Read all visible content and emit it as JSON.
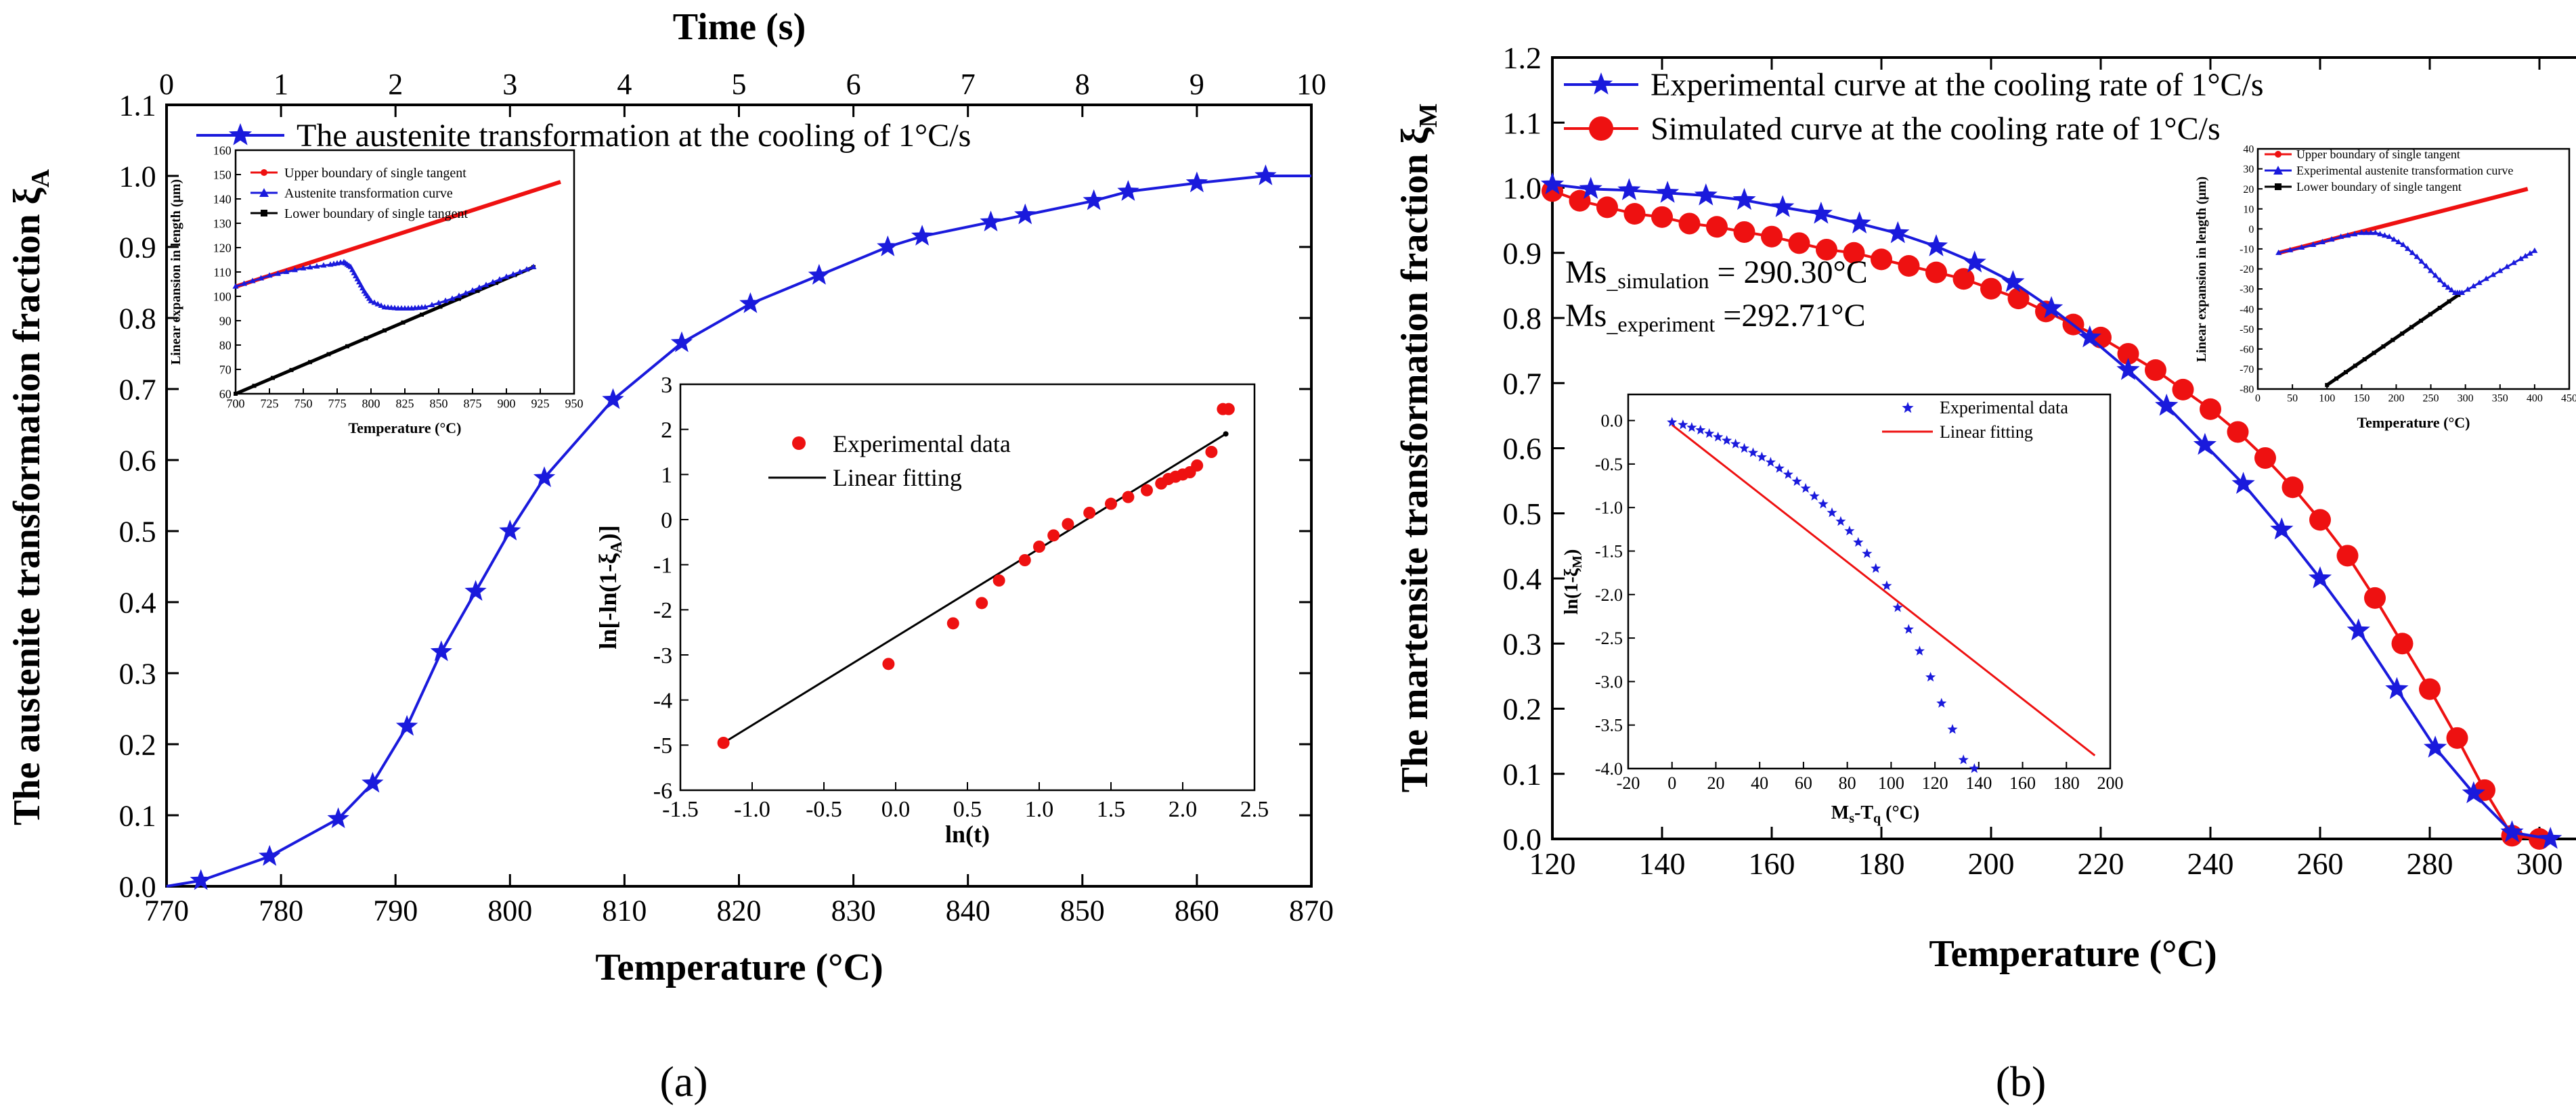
{
  "panel_labels": {
    "a": "(a)",
    "b": "(b)"
  },
  "colors": {
    "blue": "#1a1adc",
    "red": "#ee1111",
    "black": "#000000"
  },
  "annotations": {
    "ms_simulation": "Ms_simulation = 290.30°C",
    "ms_experiment": "Ms_experiment =292.71°C"
  },
  "chart_data": [
    {
      "id": "a-main",
      "type": "line",
      "title": "",
      "xlabel": "Temperature (°C)",
      "ylabel": "The austenite transformation fraction ξA",
      "x2label": "Time (s)",
      "xlim": [
        770,
        870
      ],
      "ylim": [
        0,
        1.1
      ],
      "x2lim": [
        0,
        10
      ],
      "xticks": [
        "770",
        "780",
        "790",
        "800",
        "810",
        "820",
        "830",
        "840",
        "850",
        "860",
        "870"
      ],
      "yticks": [
        "0.0",
        "0.1",
        "0.2",
        "0.3",
        "0.4",
        "0.5",
        "0.6",
        "0.7",
        "0.8",
        "0.9",
        "1.0",
        "1.1"
      ],
      "x2ticks": [
        "0",
        "1",
        "2",
        "3",
        "4",
        "5",
        "6",
        "7",
        "8",
        "9",
        "10"
      ],
      "legend": [
        "The austenite transformation at the cooling of 1°C/s"
      ],
      "series": [
        {
          "name": "The austenite transformation at the cooling of 1°C/s",
          "color": "#1a1adc",
          "marker": "star",
          "x": [
            770,
            773,
            779,
            785,
            788,
            791,
            794,
            797,
            800,
            803,
            809,
            815,
            821,
            827,
            833,
            836,
            842,
            845,
            851,
            854,
            860,
            866,
            870
          ],
          "y": [
            0.0,
            0.008,
            0.042,
            0.095,
            0.145,
            0.225,
            0.33,
            0.415,
            0.5,
            0.575,
            0.685,
            0.765,
            0.82,
            0.86,
            0.9,
            0.915,
            0.935,
            0.945,
            0.965,
            0.978,
            0.99,
            1.0,
            1.0
          ],
          "marker_indices": [
            1,
            2,
            3,
            4,
            5,
            6,
            7,
            8,
            9,
            10,
            11,
            12,
            13,
            14,
            15,
            16,
            17,
            18,
            19,
            20,
            21
          ]
        }
      ]
    },
    {
      "id": "a-inset-dilatometry",
      "type": "line",
      "xlabel": "Temperature (°C)",
      "ylabel": "Linear expansion in length (μm)",
      "xlim": [
        700,
        950
      ],
      "ylim": [
        60,
        160
      ],
      "xticks": [
        "700",
        "725",
        "750",
        "775",
        "800",
        "825",
        "850",
        "875",
        "900",
        "925",
        "950"
      ],
      "yticks": [
        "60",
        "70",
        "80",
        "90",
        "100",
        "110",
        "120",
        "130",
        "140",
        "150",
        "160"
      ],
      "legend": [
        "Upper boundary of single tangent",
        "Austenite transformation curve",
        "Lower boundary of single tangent"
      ],
      "series": [
        {
          "name": "Upper boundary of single tangent",
          "color": "#ee1111",
          "x": [
            700,
            940
          ],
          "y": [
            104,
            147
          ]
        },
        {
          "name": "Austenite transformation curve",
          "color": "#1a1adc",
          "x": [
            700,
            725,
            750,
            770,
            780,
            785,
            790,
            795,
            800,
            810,
            820,
            830,
            840,
            860,
            880,
            900,
            920
          ],
          "y": [
            104,
            108.5,
            111.5,
            113,
            114,
            112,
            107,
            102,
            98,
            95.5,
            95,
            95,
            95.5,
            99,
            103.5,
            108,
            112
          ]
        },
        {
          "name": "Lower boundary of single tangent",
          "color": "#000000",
          "x": [
            700,
            920
          ],
          "y": [
            60,
            112
          ]
        }
      ]
    },
    {
      "id": "a-inset-jmak",
      "type": "scatter",
      "xlabel": "ln(t)",
      "ylabel": "ln[-ln(1-ξA)]",
      "xlim": [
        -1.5,
        2.5
      ],
      "ylim": [
        -6,
        3
      ],
      "xticks": [
        "-1.5",
        "-1.0",
        "-0.5",
        "0.0",
        "0.5",
        "1.0",
        "1.5",
        "2.0",
        "2.5"
      ],
      "yticks": [
        "-6",
        "-5",
        "-4",
        "-3",
        "-2",
        "-1",
        "0",
        "1",
        "2",
        "3"
      ],
      "legend": [
        "Experimental data",
        "Linear fitting"
      ],
      "series": [
        {
          "name": "Experimental data",
          "color": "#ee1111",
          "x": [
            -1.2,
            -0.05,
            0.4,
            0.6,
            0.72,
            0.9,
            1.0,
            1.1,
            1.2,
            1.35,
            1.5,
            1.62,
            1.75,
            1.85,
            1.9,
            1.95,
            2.0,
            2.05,
            2.1,
            2.2,
            2.28,
            2.32
          ],
          "y": [
            -4.95,
            -3.2,
            -2.3,
            -1.85,
            -1.35,
            -0.9,
            -0.6,
            -0.35,
            -0.1,
            0.15,
            0.35,
            0.5,
            0.65,
            0.8,
            0.9,
            0.95,
            1.0,
            1.05,
            1.2,
            1.5,
            2.45,
            2.45
          ]
        },
        {
          "name": "Linear fitting",
          "color": "#000000",
          "x": [
            -1.2,
            2.3
          ],
          "y": [
            -4.95,
            1.9
          ]
        }
      ]
    },
    {
      "id": "b-main",
      "type": "line",
      "xlabel": "Temperature (°C)",
      "ylabel": "The martensite transformation fraction ξM",
      "xlim": [
        120,
        310
      ],
      "ylim": [
        0,
        1.2
      ],
      "xticks": [
        "120",
        "140",
        "160",
        "180",
        "200",
        "220",
        "240",
        "260",
        "280",
        "300"
      ],
      "yticks": [
        "0.0",
        "0.1",
        "0.2",
        "0.3",
        "0.4",
        "0.5",
        "0.6",
        "0.7",
        "0.8",
        "0.9",
        "1.0",
        "1.1",
        "1.2"
      ],
      "legend": [
        "Experimental curve at the cooling rate of 1°C/s",
        "Simulated curve at the cooling rate of 1°C/s"
      ],
      "series": [
        {
          "name": "Experimental curve at the cooling rate of 1°C/s",
          "color": "#1a1adc",
          "marker": "star",
          "x": [
            120,
            127,
            134,
            141,
            148,
            155,
            162,
            169,
            176,
            183,
            190,
            197,
            204,
            211,
            218,
            225,
            232,
            239,
            246,
            253,
            260,
            267,
            274,
            281,
            288,
            295,
            302
          ],
          "y": [
            1.005,
            0.998,
            0.996,
            0.992,
            0.988,
            0.981,
            0.97,
            0.96,
            0.945,
            0.93,
            0.91,
            0.885,
            0.855,
            0.815,
            0.77,
            0.72,
            0.665,
            0.605,
            0.545,
            0.475,
            0.4,
            0.32,
            0.23,
            0.14,
            0.07,
            0.01,
            0.0
          ]
        },
        {
          "name": "Simulated curve at the cooling rate of 1°C/s",
          "color": "#ee1111",
          "marker": "circle",
          "x": [
            120,
            125,
            130,
            135,
            140,
            145,
            150,
            155,
            160,
            165,
            170,
            175,
            180,
            185,
            190,
            195,
            200,
            205,
            210,
            215,
            220,
            225,
            230,
            235,
            240,
            245,
            250,
            255,
            260,
            265,
            270,
            275,
            280,
            285,
            290,
            295,
            300
          ],
          "y": [
            0.995,
            0.98,
            0.97,
            0.96,
            0.955,
            0.945,
            0.94,
            0.932,
            0.925,
            0.915,
            0.905,
            0.9,
            0.89,
            0.88,
            0.87,
            0.86,
            0.845,
            0.83,
            0.81,
            0.79,
            0.77,
            0.745,
            0.72,
            0.69,
            0.66,
            0.625,
            0.585,
            0.54,
            0.49,
            0.435,
            0.37,
            0.3,
            0.23,
            0.155,
            0.075,
            0.005,
            0.0
          ]
        }
      ]
    },
    {
      "id": "b-inset-dilatometry",
      "type": "line",
      "xlabel": "Temperature (°C)",
      "ylabel": "Linear expansion in length (μm)",
      "xlim": [
        0,
        450
      ],
      "ylim": [
        -80,
        40
      ],
      "xticks": [
        "0",
        "50",
        "100",
        "150",
        "200",
        "250",
        "300",
        "350",
        "400",
        "450"
      ],
      "yticks": [
        "-80",
        "-70",
        "-60",
        "-50",
        "-40",
        "-30",
        "-20",
        "-10",
        "0",
        "10",
        "20",
        "30",
        "40"
      ],
      "legend": [
        "Upper boundary of single tangent",
        "Experimental austenite transformation curve",
        "Lower boundary of single tangent"
      ],
      "series": [
        {
          "name": "Upper boundary of single tangent",
          "color": "#ee1111",
          "x": [
            30,
            390
          ],
          "y": [
            -12,
            20
          ]
        },
        {
          "name": "Experimental austenite transformation curve",
          "color": "#1a1adc",
          "x": [
            30,
            80,
            120,
            150,
            170,
            190,
            210,
            230,
            250,
            270,
            285,
            295,
            320,
            350,
            380,
            400
          ],
          "y": [
            -12,
            -8,
            -4,
            -2,
            -2,
            -4,
            -8,
            -14,
            -21,
            -28,
            -32,
            -32,
            -27,
            -21,
            -15,
            -11
          ]
        },
        {
          "name": "Lower boundary of single tangent",
          "color": "#000000",
          "x": [
            100,
            290
          ],
          "y": [
            -78,
            -33
          ]
        }
      ]
    },
    {
      "id": "b-inset-ln",
      "type": "scatter",
      "xlabel": "Ms-Tq (°C)",
      "ylabel": "ln(1-ξM)",
      "xlim": [
        -20,
        200
      ],
      "ylim": [
        -4,
        0.3
      ],
      "xticks": [
        "-20",
        "0",
        "20",
        "40",
        "60",
        "80",
        "100",
        "120",
        "140",
        "160",
        "180",
        "200"
      ],
      "yticks": [
        "-4.0",
        "-3.5",
        "-3.0",
        "-2.5",
        "-2.0",
        "-1.5",
        "-1.0",
        "-0.5",
        "0.0"
      ],
      "legend": [
        "Experimental data",
        "Linear fitting"
      ],
      "series": [
        {
          "name": "Experimental data",
          "color": "#1a1adc",
          "marker": "star",
          "x": [
            0,
            5,
            9,
            13,
            17,
            21,
            25,
            29,
            33,
            37,
            41,
            45,
            49,
            53,
            57,
            61,
            65,
            69,
            73,
            77,
            81,
            85,
            89,
            93,
            98,
            103,
            108,
            113,
            118,
            123,
            128,
            133,
            138
          ],
          "y": [
            -0.02,
            -0.05,
            -0.08,
            -0.11,
            -0.15,
            -0.19,
            -0.23,
            -0.27,
            -0.32,
            -0.37,
            -0.42,
            -0.48,
            -0.55,
            -0.62,
            -0.7,
            -0.78,
            -0.87,
            -0.96,
            -1.06,
            -1.16,
            -1.27,
            -1.4,
            -1.53,
            -1.7,
            -1.9,
            -2.15,
            -2.4,
            -2.65,
            -2.95,
            -3.25,
            -3.55,
            -3.9,
            -4.0
          ]
        },
        {
          "name": "Linear fitting",
          "color": "#ee1111",
          "x": [
            0,
            193
          ],
          "y": [
            -0.05,
            -3.85
          ]
        }
      ]
    }
  ]
}
